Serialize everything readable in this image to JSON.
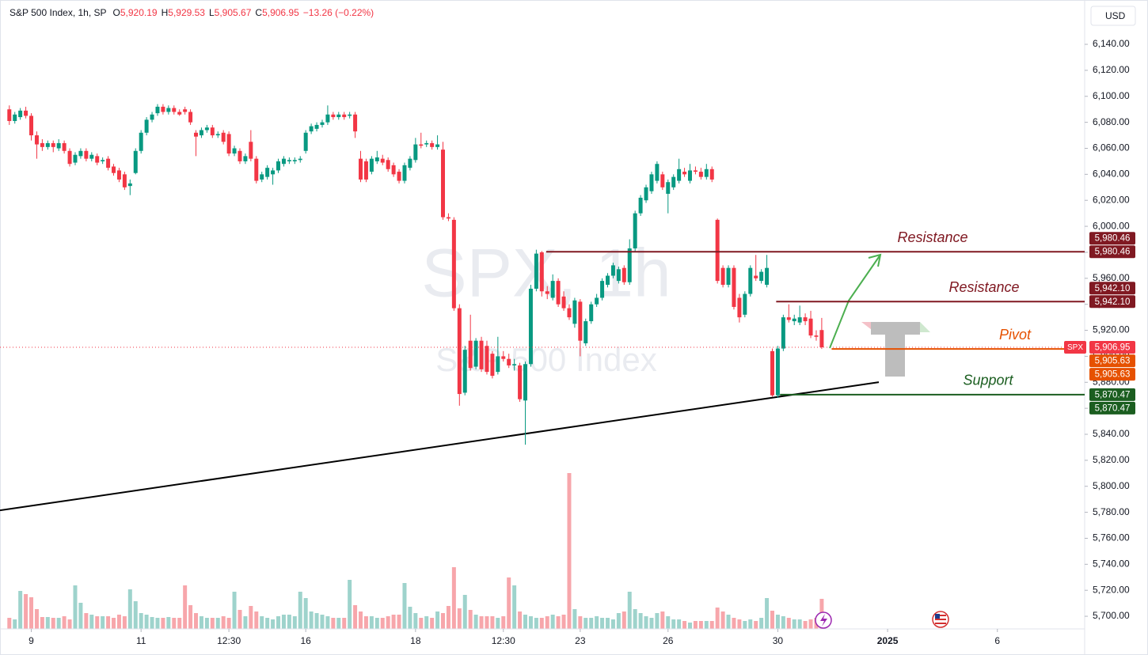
{
  "chart_data": {
    "type": "candlestick",
    "header": {
      "title": "S&P 500 Index, 1h, SP",
      "o": "O",
      "open": "5,920.19",
      "h": "H",
      "high": "5,929.53",
      "l": "L",
      "low": "5,905.67",
      "c": "C",
      "close": "5,906.95",
      "change": "−13.26 (−0.22%)"
    },
    "currency": "USD",
    "watermark_symbol": "SPX, 1h",
    "watermark_name": "S&P 500 Index",
    "up_color": "#089981",
    "down_color": "#f23645",
    "volume_up_color": "#9ed3cc",
    "volume_down_color": "#f7a6ab",
    "xlim": [
      -1.7,
      195.9
    ],
    "xticks": [
      {
        "value": 4,
        "label": "9"
      },
      {
        "value": 24,
        "label": "11"
      },
      {
        "value": 40,
        "label": "12:30"
      },
      {
        "value": 54,
        "label": "16"
      },
      {
        "value": 74,
        "label": "18"
      },
      {
        "value": 90,
        "label": "12:30"
      },
      {
        "value": 104,
        "label": "23"
      },
      {
        "value": 120,
        "label": "26"
      },
      {
        "value": 140,
        "label": "30"
      },
      {
        "value": 160,
        "label": "2025"
      },
      {
        "value": 180,
        "label": "6"
      }
    ],
    "ylim": [
      5690.3,
      6174.1
    ],
    "yticks": [
      {
        "value": 5700,
        "label": "5,700.00"
      },
      {
        "value": 5720,
        "label": "5,720.00"
      },
      {
        "value": 5740,
        "label": "5,740.00"
      },
      {
        "value": 5760,
        "label": "5,760.00"
      },
      {
        "value": 5780,
        "label": "5,780.00"
      },
      {
        "value": 5800,
        "label": "5,800.00"
      },
      {
        "value": 5820,
        "label": "5,820.00"
      },
      {
        "value": 5840,
        "label": "5,840.00"
      },
      {
        "value": 5860,
        "label": "5,860.00"
      },
      {
        "value": 5880,
        "label": "5,880.00"
      },
      {
        "value": 5900,
        "label": "5,900.00"
      },
      {
        "value": 5920,
        "label": "5,920.00"
      },
      {
        "value": 5940,
        "label": "5,940.00"
      },
      {
        "value": 5960,
        "label": "5,960.00"
      },
      {
        "value": 5980,
        "label": "5,980.00"
      },
      {
        "value": 6000,
        "label": "6,000.00"
      },
      {
        "value": 6020,
        "label": "6,020.00"
      },
      {
        "value": 6040,
        "label": "6,040.00"
      },
      {
        "value": 6060,
        "label": "6,060.00"
      },
      {
        "value": 6080,
        "label": "6,080.00"
      },
      {
        "value": 6100,
        "label": "6,100.00"
      },
      {
        "value": 6120,
        "label": "6,120.00"
      },
      {
        "value": 6140,
        "label": "6,140.00"
      }
    ],
    "grid": false,
    "open": [
      6090,
      6081,
      6084,
      6089,
      6085,
      6070,
      6064,
      6061,
      6064,
      6060,
      6064,
      6058,
      6049,
      6054,
      6058,
      6052,
      6054,
      6050,
      6052,
      6046,
      6043,
      6040,
      6031,
      6041,
      6058,
      6072,
      6082,
      6087,
      6092,
      6088,
      6091,
      6088,
      6090,
      6088,
      6072,
      6070,
      6074,
      6076,
      6070,
      6072,
      6071,
      6056,
      6058,
      6050,
      6065,
      6052,
      6036,
      6038,
      6040,
      6043,
      6048,
      6050,
      6050,
      6051,
      6058,
      6073,
      6075,
      6078,
      6080,
      6086,
      6084,
      6086,
      6085,
      6086,
      6052,
      6050,
      6042,
      6050,
      6052,
      6051,
      6047,
      6042,
      6035,
      6045,
      6051,
      6063,
      6063,
      6064,
      6061,
      6059,
      6007,
      6005,
      5937,
      5872,
      5912,
      5892,
      5912,
      5908,
      5902,
      5888,
      5900,
      5898,
      5893,
      5893,
      5866,
      5894,
      5952,
      5980,
      5950,
      5945,
      5958,
      5946,
      5937,
      5925,
      5942,
      5910,
      5927,
      5940,
      5945,
      5955,
      5962,
      5958,
      5968,
      5957,
      5983,
      6010,
      6020,
      6027,
      6035,
      6040,
      6025,
      6030,
      6035,
      6042,
      6035,
      6043,
      6042,
      6038,
      6044,
      6005,
      5968,
      5955,
      5968,
      5945,
      5932,
      5948,
      5962,
      5958,
      5955,
      5904,
      5870,
      5906,
      5930,
      5927,
      5926,
      5930,
      5929,
      5916,
      5920.19
    ],
    "high": [
      6093,
      6088,
      6091,
      6092,
      6087,
      6073,
      6067,
      6066,
      6066,
      6067,
      6066,
      6060,
      6057,
      6060,
      6060,
      6057,
      6056,
      6053,
      6054,
      6048,
      6045,
      6042,
      6036,
      6060,
      6074,
      6084,
      6088,
      6094,
      6094,
      6093,
      6093,
      6090,
      6092,
      6090,
      6074,
      6076,
      6078,
      6078,
      6073,
      6074,
      6073,
      6062,
      6060,
      6056,
      6074,
      6054,
      6042,
      6047,
      6045,
      6052,
      6054,
      6053,
      6053,
      6054,
      6074,
      6079,
      6080,
      6082,
      6093,
      6088,
      6088,
      6088,
      6088,
      6088,
      6058,
      6052,
      6054,
      6058,
      6055,
      6053,
      6049,
      6044,
      6049,
      6054,
      6068,
      6072,
      6066,
      6066,
      6070,
      6065,
      6010,
      6007,
      5940,
      5908,
      5932,
      5914,
      5915,
      5912,
      5904,
      5915,
      5904,
      5902,
      5898,
      5895,
      5896,
      5955,
      5982,
      5981,
      5954,
      5963,
      5960,
      5950,
      5940,
      5945,
      5944,
      5929,
      5942,
      5948,
      5960,
      5964,
      5972,
      5969,
      5970,
      5990,
      6012,
      6024,
      6032,
      6042,
      6050,
      6042,
      6036,
      6040,
      6052,
      6045,
      6048,
      6046,
      6045,
      6048,
      6046,
      6006,
      5970,
      5970,
      5970,
      5948,
      5950,
      5970,
      5978,
      5967,
      5978,
      5906,
      5908,
      5932,
      5940,
      5932,
      5939,
      5933,
      5935,
      5920,
      5929.53
    ],
    "low": [
      6078,
      6079,
      6082,
      6083,
      6066,
      6052,
      6058,
      6059,
      6057,
      6058,
      6056,
      6046,
      6047,
      6052,
      6050,
      6050,
      6047,
      6048,
      6043,
      6039,
      6034,
      6028,
      6024,
      6040,
      6056,
      6070,
      6080,
      6085,
      6086,
      6086,
      6086,
      6085,
      6086,
      6078,
      6054,
      6068,
      6072,
      6068,
      6068,
      6063,
      6054,
      6054,
      6048,
      6048,
      6050,
      6033,
      6034,
      6036,
      6032,
      6041,
      6046,
      6048,
      6048,
      6049,
      6056,
      6071,
      6073,
      6076,
      6078,
      6082,
      6082,
      6082,
      6083,
      6068,
      6034,
      6034,
      6040,
      6048,
      6047,
      6042,
      6038,
      6033,
      6033,
      6043,
      6049,
      6060,
      6061,
      6059,
      6059,
      6005,
      6004,
      5935,
      5862,
      5870,
      5889,
      5890,
      5888,
      5886,
      5883,
      5886,
      5896,
      5891,
      5889,
      5865,
      5832,
      5892,
      5950,
      5946,
      5944,
      5943,
      5938,
      5935,
      5928,
      5922,
      5900,
      5908,
      5925,
      5938,
      5943,
      5953,
      5960,
      5956,
      5955,
      5955,
      5980,
      6008,
      6018,
      6025,
      6033,
      6028,
      6010,
      6028,
      6033,
      6038,
      6033,
      6040,
      6036,
      6036,
      6034,
      5956,
      5953,
      5953,
      5936,
      5926,
      5930,
      5946,
      5958,
      5956,
      5953,
      5869,
      5868,
      5904,
      5926,
      5924,
      5924,
      5924,
      5914,
      5912,
      5905.67
    ],
    "close": [
      6081,
      6086,
      6089,
      6085,
      6070,
      6063,
      6061,
      6064,
      6061,
      6064,
      6058,
      6048,
      6055,
      6058,
      6052,
      6055,
      6049,
      6051,
      6045,
      6041,
      6036,
      6030,
      6033,
      6058,
      6072,
      6082,
      6086,
      6092,
      6088,
      6091,
      6088,
      6086,
      6088,
      6080,
      6069,
      6074,
      6076,
      6070,
      6071,
      6065,
      6056,
      6060,
      6050,
      6054,
      6052,
      6035,
      6040,
      6045,
      6043,
      6050,
      6052,
      6051,
      6051,
      6052,
      6072,
      6077,
      6078,
      6080,
      6086,
      6084,
      6086,
      6084,
      6086,
      6073,
      6036,
      6036,
      6052,
      6053,
      6049,
      6044,
      6040,
      6035,
      6047,
      6052,
      6063,
      6062,
      6064,
      6061,
      6063,
      6007,
      6006,
      5937,
      5871,
      5905,
      5891,
      5912,
      5890,
      5888,
      5885,
      5900,
      5898,
      5893,
      5894,
      5867,
      5894,
      5952,
      5979,
      5950,
      5948,
      5958,
      5940,
      5937,
      5930,
      5943,
      5912,
      5927,
      5940,
      5945,
      5958,
      5962,
      5970,
      5967,
      5957,
      5983,
      6010,
      6022,
      6030,
      6040,
      6048,
      6030,
      6034,
      6038,
      6044,
      6040,
      6043,
      6042,
      6038,
      6044,
      6036,
      5958,
      5955,
      5968,
      5938,
      5930,
      5948,
      5968,
      5960,
      5965,
      5968,
      5870,
      5906,
      5930,
      5928,
      5929,
      5930,
      5927,
      5916,
      5915,
      5906.95
    ],
    "volume": [
      14,
      12,
      48,
      44,
      40,
      25,
      15,
      15,
      14,
      14,
      16,
      12,
      55,
      33,
      20,
      18,
      16,
      16,
      16,
      14,
      18,
      16,
      50,
      35,
      20,
      18,
      15,
      14,
      14,
      15,
      14,
      14,
      55,
      30,
      20,
      16,
      14,
      14,
      14,
      16,
      14,
      47,
      24,
      16,
      29,
      22,
      16,
      14,
      12,
      16,
      18,
      18,
      16,
      47,
      39,
      22,
      20,
      18,
      16,
      14,
      14,
      14,
      62,
      30,
      22,
      16,
      16,
      14,
      14,
      16,
      18,
      18,
      58,
      28,
      20,
      14,
      16,
      14,
      22,
      20,
      29,
      78,
      26,
      43,
      24,
      18,
      16,
      16,
      16,
      14,
      16,
      65,
      55,
      22,
      18,
      16,
      14,
      14,
      16,
      18,
      16,
      18,
      197,
      25,
      16,
      14,
      14,
      16,
      14,
      14,
      12,
      20,
      22,
      47,
      25,
      20,
      16,
      14,
      20,
      22,
      16,
      12,
      12,
      10,
      8,
      10,
      10,
      10,
      10,
      27,
      22,
      18,
      14,
      12,
      10,
      12,
      10,
      14,
      39,
      23,
      18,
      16,
      14,
      12,
      12,
      10,
      12,
      14,
      38
    ],
    "symbol_tag": "SPX",
    "last_price_label": "5,906.95",
    "last_price_color": "#f23645",
    "trendline": {
      "x": [
        -1.7,
        158.4
      ],
      "y": [
        5781.5,
        5880.1
      ],
      "color": "#000000"
    },
    "levels": [
      {
        "label": "Resistance",
        "value": 5980.46,
        "value_label": "5,980.46",
        "from": 97.8,
        "color": "#801922"
      },
      {
        "label": "Resistance",
        "value": 5942.1,
        "value_label": "5,942.10",
        "from": 139.7,
        "color": "#801922"
      },
      {
        "label": "Pivot",
        "value": 5905.63,
        "value_label": "5,905.63",
        "from": 149.8,
        "color": "#e65100"
      },
      {
        "label": "Support",
        "value": 5870.47,
        "value_label": "5,870.47",
        "from": 140.4,
        "color": "#1b5e20"
      }
    ]
  }
}
